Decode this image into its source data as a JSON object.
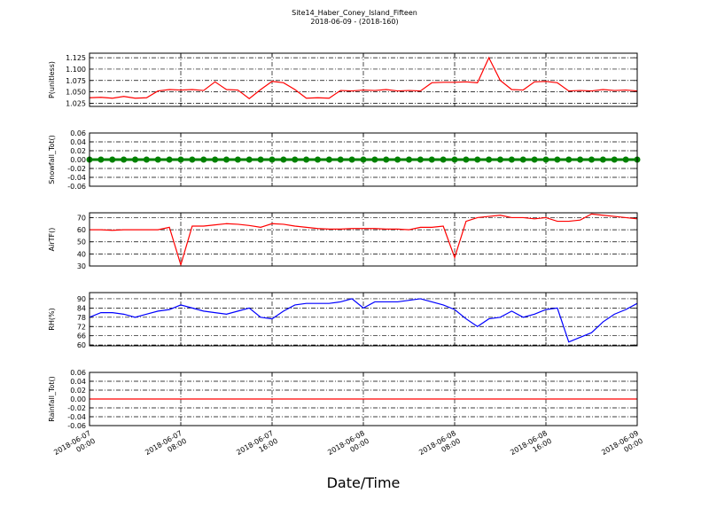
{
  "chart_data": {
    "type": "line",
    "title": "Site14_Haber_Coney_Island_Fifteen",
    "subtitle": "2018-06-09 - (2018-160)",
    "x_label": "Date/Time",
    "x": [
      "2018-06-07 00:00",
      "2018-06-07 01:00",
      "2018-06-07 02:00",
      "2018-06-07 03:00",
      "2018-06-07 04:00",
      "2018-06-07 05:00",
      "2018-06-07 06:00",
      "2018-06-07 07:00",
      "2018-06-07 08:00",
      "2018-06-07 09:00",
      "2018-06-07 10:00",
      "2018-06-07 11:00",
      "2018-06-07 12:00",
      "2018-06-07 13:00",
      "2018-06-07 14:00",
      "2018-06-07 15:00",
      "2018-06-07 16:00",
      "2018-06-07 17:00",
      "2018-06-07 18:00",
      "2018-06-07 19:00",
      "2018-06-07 20:00",
      "2018-06-07 21:00",
      "2018-06-07 22:00",
      "2018-06-07 23:00",
      "2018-06-08 00:00",
      "2018-06-08 01:00",
      "2018-06-08 02:00",
      "2018-06-08 03:00",
      "2018-06-08 04:00",
      "2018-06-08 05:00",
      "2018-06-08 06:00",
      "2018-06-08 07:00",
      "2018-06-08 08:00",
      "2018-06-08 09:00",
      "2018-06-08 10:00",
      "2018-06-08 11:00",
      "2018-06-08 12:00",
      "2018-06-08 13:00",
      "2018-06-08 14:00",
      "2018-06-08 15:00",
      "2018-06-08 16:00",
      "2018-06-08 17:00",
      "2018-06-08 18:00",
      "2018-06-08 19:00",
      "2018-06-08 20:00",
      "2018-06-08 21:00",
      "2018-06-08 22:00",
      "2018-06-08 23:00",
      "2018-06-09 00:00"
    ],
    "xlim": [
      "2018-06-07 00:00",
      "2018-06-09 00:00"
    ],
    "xticks": [
      "2018-06-07 00:00",
      "2018-06-07 08:00",
      "2018-06-07 16:00",
      "2018-06-08 00:00",
      "2018-06-08 08:00",
      "2018-06-08 16:00",
      "2018-06-09 00:00"
    ],
    "grid": true,
    "panels": [
      {
        "y_label": "P(unitless)",
        "ylim": [
          1.018,
          1.135
        ],
        "yticks": [
          1.025,
          {
            "value": 1.05,
            "label": "1.050"
          },
          1.075,
          {
            "value": 1.1,
            "label": "1.100"
          },
          1.125
        ],
        "series": [
          {
            "color": "#ff0000",
            "values": [
              1.037,
              1.038,
              1.036,
              1.04,
              1.036,
              1.037,
              1.052,
              1.055,
              1.054,
              1.055,
              1.053,
              1.072,
              1.055,
              1.054,
              1.035,
              1.055,
              1.073,
              1.07,
              1.055,
              1.036,
              1.037,
              1.036,
              1.053,
              1.052,
              1.054,
              1.053,
              1.055,
              1.052,
              1.053,
              1.052,
              1.07,
              1.071,
              1.071,
              1.072,
              1.07,
              1.125,
              1.075,
              1.055,
              1.054,
              1.072,
              1.073,
              1.07,
              1.052,
              1.053,
              1.052,
              1.055,
              1.053,
              1.054,
              1.052
            ]
          }
        ]
      },
      {
        "y_label": "Snowfall_Tot()",
        "ylim": [
          -0.06,
          0.06
        ],
        "yticks": [
          -0.06,
          -0.04,
          -0.02,
          {
            "value": 0,
            "label": "0.00"
          },
          0.02,
          0.04,
          0.06
        ],
        "series": [
          {
            "color": "#008000",
            "marker": "o",
            "values": [
              0,
              0,
              0,
              0,
              0,
              0,
              0,
              0,
              0,
              0,
              0,
              0,
              0,
              0,
              0,
              0,
              0,
              0,
              0,
              0,
              0,
              0,
              0,
              0,
              0,
              0,
              0,
              0,
              0,
              0,
              0,
              0,
              0,
              0,
              0,
              0,
              0,
              0,
              0,
              0,
              0,
              0,
              0,
              0,
              0,
              0,
              0,
              0,
              0
            ]
          }
        ]
      },
      {
        "y_label": "AirTF()",
        "ylim": [
          30,
          74
        ],
        "yticks": [
          30,
          40,
          50,
          60,
          70
        ],
        "series": [
          {
            "color": "#ff0000",
            "values": [
              60,
              60,
              59.5,
              60,
              60,
              60,
              60,
              62,
              31,
              63,
              63,
              64,
              65,
              64.5,
              63.5,
              62,
              65,
              64.5,
              63,
              62,
              61,
              60.5,
              60.5,
              61,
              61,
              61,
              60.5,
              60.5,
              60,
              62,
              62,
              63,
              37,
              67,
              70,
              71,
              72,
              70,
              70,
              69,
              70,
              67,
              67,
              68,
              73,
              72,
              71,
              70,
              69
            ]
          }
        ]
      },
      {
        "y_label": "RH(%)",
        "ylim": [
          59.5,
          94
        ],
        "yticks": [
          60,
          66,
          72,
          78,
          84,
          90
        ],
        "series": [
          {
            "color": "#0000ff",
            "values": [
              78,
              81,
              81,
              80,
              78,
              80,
              82,
              83,
              86,
              84,
              82,
              81,
              80,
              82,
              84,
              78,
              77,
              82,
              86,
              87,
              87,
              87,
              88,
              90,
              84,
              88,
              88,
              88,
              89,
              90,
              88,
              86,
              83,
              77,
              72,
              77,
              78,
              82,
              78,
              80,
              83,
              84,
              62,
              65,
              68,
              75,
              80,
              83,
              87
            ]
          }
        ]
      },
      {
        "y_label": "Rainfall_Tot()",
        "ylim": [
          -0.06,
          0.06
        ],
        "yticks": [
          -0.06,
          -0.04,
          -0.02,
          {
            "value": 0,
            "label": "0.00"
          },
          0.02,
          0.04,
          0.06
        ],
        "series": [
          {
            "color": "#ff0000",
            "values": [
              0,
              0,
              0,
              0,
              0,
              0,
              0,
              0,
              0,
              0,
              0,
              0,
              0,
              0,
              0,
              0,
              0,
              0,
              0,
              0,
              0,
              0,
              0,
              0,
              0,
              0,
              0,
              0,
              0,
              0,
              0,
              0,
              0,
              0,
              0,
              0,
              0,
              0,
              0,
              0,
              0,
              0,
              0,
              0,
              0,
              0,
              0,
              0,
              0
            ]
          }
        ]
      }
    ]
  }
}
